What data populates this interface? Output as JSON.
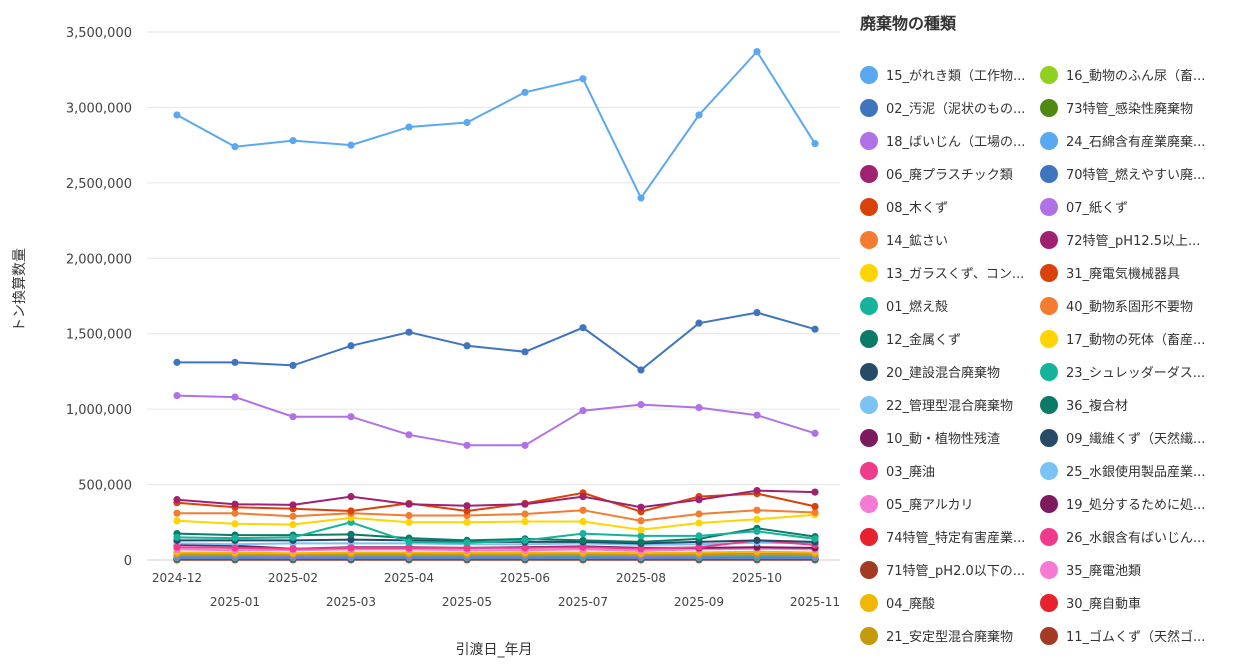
{
  "chart_data": {
    "type": "line",
    "xlabel": "引渡日_年月",
    "ylabel": "トン換算数量",
    "ylim": [
      0,
      3500000
    ],
    "yticks": [
      "0",
      "500,000",
      "1,000,000",
      "1,500,000",
      "2,000,000",
      "2,500,000",
      "3,000,000",
      "3,500,000"
    ],
    "categories": [
      "2024-12",
      "2025-01",
      "2025-02",
      "2025-03",
      "2025-04",
      "2025-05",
      "2025-06",
      "2025-07",
      "2025-08",
      "2025-09",
      "2025-10",
      "2025-11"
    ],
    "grid": true,
    "legend_title": "廃棄物の種類",
    "legend_placement": "right",
    "series": [
      {
        "name": "15_がれき類（工作物...",
        "color": "#5aa8f2",
        "values": [
          2950000,
          2740000,
          2780000,
          2750000,
          2870000,
          2900000,
          3100000,
          3190000,
          2400000,
          2950000,
          3370000,
          2760000
        ]
      },
      {
        "name": "16_動物のふん尿（畜...",
        "color": "#8fd11e",
        "values": [
          5000,
          5000,
          5000,
          5000,
          5000,
          5000,
          5000,
          5000,
          5000,
          5000,
          5000,
          5000
        ]
      },
      {
        "name": "02_汚泥（泥状のもの...",
        "color": "#3f75bf",
        "values": [
          1310000,
          1310000,
          1290000,
          1420000,
          1510000,
          1420000,
          1380000,
          1540000,
          1260000,
          1570000,
          1640000,
          1530000
        ]
      },
      {
        "name": "73特管_感染性廃棄物",
        "color": "#4e8a12",
        "values": [
          8000,
          8000,
          8000,
          8000,
          8000,
          8000,
          8000,
          8000,
          8000,
          8000,
          8000,
          8000
        ]
      },
      {
        "name": "18_ばいじん（工場の...",
        "color": "#b071e6",
        "values": [
          1090000,
          1080000,
          950000,
          950000,
          830000,
          760000,
          760000,
          990000,
          1030000,
          1010000,
          960000,
          840000
        ]
      },
      {
        "name": "24_石綿含有産業廃棄...",
        "color": "#5aa8f2",
        "values": [
          15000,
          15000,
          15000,
          15000,
          15000,
          15000,
          15000,
          15000,
          15000,
          15000,
          15000,
          15000
        ]
      },
      {
        "name": "06_廃プラスチック類",
        "color": "#a02170",
        "values": [
          400000,
          370000,
          365000,
          420000,
          370000,
          360000,
          370000,
          420000,
          350000,
          400000,
          460000,
          450000
        ]
      },
      {
        "name": "70特管_燃えやすい廃...",
        "color": "#3f75bf",
        "values": [
          3000,
          3000,
          3000,
          3000,
          3000,
          3000,
          3000,
          3000,
          3000,
          3000,
          3000,
          3000
        ]
      },
      {
        "name": "08_木くず",
        "color": "#d9420b",
        "values": [
          380000,
          350000,
          340000,
          325000,
          375000,
          325000,
          375000,
          445000,
          320000,
          420000,
          440000,
          355000
        ]
      },
      {
        "name": "07_紙くず",
        "color": "#b071e6",
        "values": [
          30000,
          30000,
          28000,
          30000,
          30000,
          30000,
          30000,
          32000,
          28000,
          30000,
          32000,
          30000
        ]
      },
      {
        "name": "14_鉱さい",
        "color": "#f47c30",
        "values": [
          310000,
          310000,
          290000,
          310000,
          295000,
          295000,
          305000,
          330000,
          260000,
          305000,
          330000,
          315000
        ]
      },
      {
        "name": "72特管_pH12.5以上...",
        "color": "#a02170",
        "values": [
          2000,
          2000,
          2000,
          2000,
          2000,
          2000,
          2000,
          2000,
          2000,
          2000,
          2000,
          2000
        ]
      },
      {
        "name": "13_ガラスくず、コン...",
        "color": "#ffd400",
        "values": [
          260000,
          240000,
          235000,
          280000,
          250000,
          250000,
          255000,
          255000,
          200000,
          245000,
          270000,
          300000
        ]
      },
      {
        "name": "31_廃電気機械器具",
        "color": "#d9420b",
        "values": [
          10000,
          10000,
          10000,
          10000,
          10000,
          10000,
          10000,
          10000,
          10000,
          10000,
          10000,
          10000
        ]
      },
      {
        "name": "01_燃え殻",
        "color": "#14b39a",
        "values": [
          150000,
          145000,
          150000,
          250000,
          120000,
          115000,
          130000,
          175000,
          160000,
          160000,
          190000,
          140000
        ]
      },
      {
        "name": "40_動物系固形不要物",
        "color": "#f47c30",
        "values": [
          4000,
          4000,
          4000,
          4000,
          4000,
          4000,
          4000,
          4000,
          4000,
          4000,
          4000,
          4000
        ]
      },
      {
        "name": "12_金属くず",
        "color": "#0b7a66",
        "values": [
          175000,
          165000,
          165000,
          170000,
          145000,
          130000,
          140000,
          130000,
          120000,
          140000,
          210000,
          155000
        ]
      },
      {
        "name": "17_動物の死体（畜産...",
        "color": "#ffd400",
        "values": [
          1000,
          1000,
          1000,
          1000,
          1000,
          1000,
          1000,
          1000,
          1000,
          1000,
          1000,
          1000
        ]
      },
      {
        "name": "20_建設混合廃棄物",
        "color": "#264b66",
        "values": [
          130000,
          130000,
          130000,
          135000,
          130000,
          120000,
          120000,
          120000,
          110000,
          120000,
          130000,
          120000
        ]
      },
      {
        "name": "23_シュレッダーダス...",
        "color": "#14b39a",
        "values": [
          20000,
          20000,
          20000,
          20000,
          20000,
          20000,
          20000,
          20000,
          20000,
          20000,
          20000,
          20000
        ]
      },
      {
        "name": "22_管理型混合廃棄物",
        "color": "#7cc3f5",
        "values": [
          110000,
          105000,
          110000,
          110000,
          110000,
          105000,
          105000,
          110000,
          100000,
          105000,
          115000,
          110000
        ]
      },
      {
        "name": "36_複合材",
        "color": "#0b7a66",
        "values": [
          6000,
          6000,
          6000,
          6000,
          6000,
          6000,
          6000,
          6000,
          6000,
          6000,
          6000,
          6000
        ]
      },
      {
        "name": "10_動・植物性残渣",
        "color": "#7b1b5e",
        "values": [
          100000,
          95000,
          75000,
          85000,
          85000,
          80000,
          85000,
          90000,
          80000,
          80000,
          85000,
          80000
        ]
      },
      {
        "name": "09_繊維くず（天然繊...",
        "color": "#264b66",
        "values": [
          7000,
          7000,
          7000,
          7000,
          7000,
          7000,
          7000,
          7000,
          7000,
          7000,
          7000,
          7000
        ]
      },
      {
        "name": "03_廃油",
        "color": "#ef3b8c",
        "values": [
          85000,
          80000,
          75000,
          80000,
          80000,
          80000,
          80000,
          85000,
          75000,
          85000,
          130000,
          100000
        ]
      },
      {
        "name": "25_水銀使用製品産業...",
        "color": "#7cc3f5",
        "values": [
          1500,
          1500,
          1500,
          1500,
          1500,
          1500,
          1500,
          1500,
          1500,
          1500,
          1500,
          1500
        ]
      },
      {
        "name": "05_廃アルカリ",
        "color": "#f77bd4",
        "values": [
          70000,
          65000,
          65000,
          70000,
          70000,
          65000,
          65000,
          70000,
          60000,
          70000,
          75000,
          70000
        ]
      },
      {
        "name": "19_処分するために処...",
        "color": "#7b1b5e",
        "values": [
          12000,
          12000,
          12000,
          12000,
          12000,
          12000,
          12000,
          12000,
          12000,
          12000,
          12000,
          12000
        ]
      },
      {
        "name": "74特管_特定有害産業...",
        "color": "#e8212f",
        "values": [
          1000,
          1000,
          1000,
          1000,
          1000,
          1000,
          1000,
          1000,
          1000,
          1000,
          1000,
          1000
        ]
      },
      {
        "name": "26_水銀含有ばいじん...",
        "color": "#ef3b8c",
        "values": [
          800,
          800,
          800,
          800,
          800,
          800,
          800,
          800,
          800,
          800,
          800,
          800
        ]
      },
      {
        "name": "71特管_pH2.0以下の...",
        "color": "#a33a24",
        "values": [
          1500,
          1500,
          1500,
          1500,
          1500,
          1500,
          1500,
          1500,
          1500,
          1500,
          1500,
          1500
        ]
      },
      {
        "name": "35_廃電池類",
        "color": "#f77bd4",
        "values": [
          2000,
          2000,
          2000,
          2000,
          2000,
          2000,
          2000,
          2000,
          2000,
          2000,
          2000,
          2000
        ]
      },
      {
        "name": "04_廃酸",
        "color": "#f2b705",
        "values": [
          50000,
          48000,
          45000,
          50000,
          50000,
          48000,
          48000,
          50000,
          45000,
          50000,
          55000,
          50000
        ]
      },
      {
        "name": "30_廃自動車",
        "color": "#e8212f",
        "values": [
          9000,
          9000,
          9000,
          9000,
          9000,
          9000,
          9000,
          9000,
          9000,
          9000,
          9000,
          9000
        ]
      },
      {
        "name": "21_安定型混合廃棄物",
        "color": "#c49a0a",
        "values": [
          40000,
          40000,
          38000,
          40000,
          40000,
          38000,
          40000,
          42000,
          38000,
          40000,
          42000,
          40000
        ]
      },
      {
        "name": "11_ゴムくず（天然ゴ...",
        "color": "#a33a24",
        "values": [
          4000,
          4000,
          4000,
          4000,
          4000,
          4000,
          4000,
          4000,
          4000,
          4000,
          4000,
          4000
        ]
      }
    ]
  }
}
